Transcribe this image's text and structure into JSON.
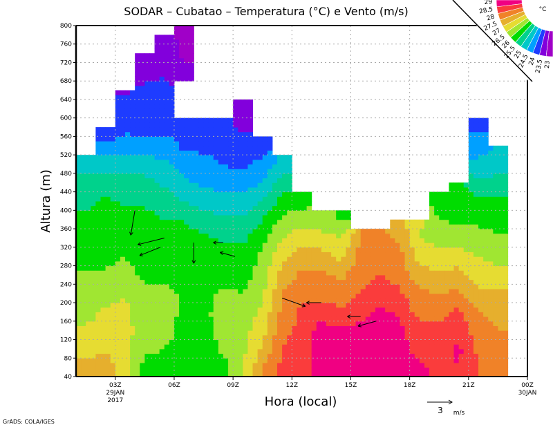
{
  "chart_data": {
    "type": "heatmap",
    "title": "SODAR  –  Cubatao  –  Temperatura (°C) e Vento (m/s)",
    "xlabel": "Hora (local)",
    "ylabel": "Altura (m)",
    "xlim_hours": [
      1,
      24
    ],
    "ylim": [
      40,
      800
    ],
    "y_ticks": [
      40,
      80,
      120,
      160,
      200,
      240,
      280,
      320,
      360,
      400,
      440,
      480,
      520,
      560,
      600,
      640,
      680,
      720,
      760,
      800
    ],
    "x_ticks": [
      {
        "hour": 3,
        "label": "03Z",
        "sub1": "29JAN",
        "sub2": "2017"
      },
      {
        "hour": 6,
        "label": "06Z"
      },
      {
        "hour": 9,
        "label": "09Z"
      },
      {
        "hour": 12,
        "label": "12Z"
      },
      {
        "hour": 15,
        "label": "15Z"
      },
      {
        "hour": 18,
        "label": "18Z"
      },
      {
        "hour": 21,
        "label": "21Z"
      },
      {
        "hour": 24,
        "label": "00Z",
        "sub1": "30JAN"
      }
    ],
    "grid": true,
    "legend": {
      "unit": "°C",
      "placement": "top-right",
      "levels": [
        23,
        23.5,
        24,
        24.5,
        25,
        25.5,
        26,
        26.5,
        27,
        27.5,
        28,
        28.5,
        29
      ],
      "labels": [
        "23",
        "23.5",
        "24",
        "24.5",
        "25",
        "25.5",
        "26",
        "26.5",
        "27",
        "27.5",
        "28",
        "28.5",
        "29"
      ],
      "colors": [
        "#a000c8",
        "#a000c8",
        "#8200dc",
        "#1e3cff",
        "#00a0ff",
        "#00c8c8",
        "#00d28c",
        "#00dc00",
        "#a0e632",
        "#e6dc32",
        "#e6af2d",
        "#f08228",
        "#fa3c3c",
        "#f00082"
      ]
    },
    "row_step_m": 40,
    "columns": [
      {
        "hour_start": 1,
        "top_m": 520,
        "temps": [
          27.8,
          27.2,
          27.1,
          26.8,
          26.7,
          26.6,
          26.2,
          26.2,
          26.2,
          25.8,
          25.7,
          25.2
        ]
      },
      {
        "hour_start": 2,
        "top_m": 580,
        "temps": [
          27.8,
          27.4,
          27.2,
          27.1,
          26.8,
          26.6,
          26.3,
          26.2,
          26.2,
          26.1,
          25.7,
          25.3,
          24.7,
          23.9
        ]
      },
      {
        "hour_start": 3,
        "top_m": 660,
        "temps": [
          27.1,
          27.2,
          27.2,
          27.1,
          27.0,
          26.7,
          26.5,
          26.2,
          26.2,
          25.9,
          25.7,
          25.2,
          24.7,
          24.4,
          24.2,
          23.9
        ]
      },
      {
        "hour_start": 4,
        "top_m": 740,
        "temps": [
          26.3,
          26.6,
          26.7,
          26.7,
          26.6,
          26.4,
          26.2,
          26.2,
          26.2,
          25.9,
          25.7,
          25.2,
          24.7,
          24.3,
          24.2,
          24.1,
          23.8,
          23.8
        ]
      },
      {
        "hour_start": 5,
        "top_m": 780,
        "temps": [
          26.3,
          26.5,
          26.7,
          26.7,
          26.7,
          26.3,
          26.2,
          26.2,
          26.0,
          25.8,
          25.4,
          25.1,
          24.8,
          24.3,
          24.2,
          24.2,
          23.9,
          23.8,
          23.8
        ]
      },
      {
        "hour_start": 6,
        "top_m": 800,
        "temps": [
          26.3,
          26.3,
          26.3,
          26.4,
          26.4,
          26.3,
          26.3,
          26.2,
          26.0,
          25.5,
          25.1,
          24.8,
          24.4,
          24.2,
          null,
          null,
          23.6,
          23.4,
          23.3
        ]
      },
      {
        "hour_start": 7,
        "top_m": 600,
        "temps": [
          26.2,
          26.2,
          26.3,
          26.4,
          26.3,
          26.2,
          26.2,
          26.1,
          25.7,
          25.3,
          24.9,
          24.8,
          24.3,
          24.2
        ]
      },
      {
        "hour_start": 8,
        "top_m": 600,
        "temps": [
          26.3,
          26.6,
          26.7,
          26.7,
          26.6,
          26.3,
          26.2,
          25.9,
          25.6,
          25.2,
          24.8,
          24.5,
          24.2,
          24.2
        ]
      },
      {
        "hour_start": 9,
        "top_m": 640,
        "temps": [
          26.9,
          26.9,
          26.8,
          26.7,
          26.5,
          26.3,
          26.2,
          25.9,
          25.6,
          25.2,
          24.8,
          24.3,
          24.2,
          23.9,
          23.8
        ]
      },
      {
        "hour_start": 10,
        "top_m": 560,
        "temps": [
          28.0,
          27.6,
          27.3,
          27.1,
          26.9,
          26.7,
          26.6,
          26.3,
          26.0,
          25.5,
          25.0,
          24.7,
          24.2
        ]
      },
      {
        "hour_start": 11,
        "top_m": 520,
        "temps": [
          28.6,
          28.5,
          28.3,
          28.1,
          28.0,
          27.7,
          27.4,
          27.0,
          26.6,
          26.2,
          25.7,
          25.2
        ]
      },
      {
        "hour_start": 12,
        "top_m": 440,
        "temps": [
          28.8,
          28.8,
          28.7,
          28.6,
          28.3,
          28.1,
          27.8,
          27.3,
          26.8,
          26.3
        ]
      },
      {
        "hour_start": 13,
        "top_m": 400,
        "temps": [
          29.3,
          29.3,
          29.2,
          28.8,
          28.3,
          28.1,
          27.7,
          27.2,
          26.7
        ]
      },
      {
        "hour_start": 14,
        "top_m": 400,
        "temps": [
          29.3,
          29.3,
          29.1,
          28.6,
          28.2,
          27.9,
          27.4,
          27.0,
          26.4
        ]
      },
      {
        "hour_start": 15,
        "top_m": 360,
        "temps": [
          29.4,
          29.3,
          29.2,
          28.8,
          28.5,
          28.3,
          28.2,
          28.0
        ]
      },
      {
        "hour_start": 16,
        "top_m": 360,
        "temps": [
          29.4,
          29.4,
          29.3,
          29.1,
          28.7,
          28.5,
          28.3,
          28.2
        ]
      },
      {
        "hour_start": 17,
        "top_m": 380,
        "temps": [
          29.2,
          29.2,
          29.1,
          28.9,
          28.6,
          28.3,
          28.2,
          27.9,
          27.6
        ]
      },
      {
        "hour_start": 18,
        "top_m": 380,
        "temps": [
          29.1,
          28.8,
          28.7,
          28.3,
          28.1,
          27.7,
          27.3,
          27.0,
          27.1
        ]
      },
      {
        "hour_start": 19,
        "top_m": 440,
        "temps": [
          28.9,
          28.8,
          28.7,
          28.3,
          28.0,
          27.6,
          27.2,
          26.8,
          26.5,
          26.3
        ]
      },
      {
        "hour_start": 20,
        "top_m": 460,
        "temps": [
          29.0,
          29.1,
          28.9,
          28.6,
          28.1,
          27.7,
          27.2,
          26.8,
          26.4,
          26.2,
          26.1
        ]
      },
      {
        "hour_start": 21,
        "top_m": 600,
        "temps": [
          28.5,
          28.4,
          28.2,
          28.0,
          27.6,
          27.3,
          27.0,
          26.7,
          26.4,
          26.1,
          25.6,
          25.1,
          24.8,
          24.4
        ]
      },
      {
        "hour_start": 22,
        "top_m": 540,
        "temps": [
          28.2,
          28.1,
          28.0,
          27.8,
          27.6,
          27.2,
          26.8,
          26.6,
          26.2,
          26.1,
          25.7,
          25.2,
          25.0
        ]
      }
    ],
    "wind_ms": [
      {
        "hour": 5.5,
        "height": 340,
        "u": -3.2,
        "v": -0.8
      },
      {
        "hour": 5.3,
        "height": 320,
        "u": -2.5,
        "v": -1.0
      },
      {
        "hour": 4.0,
        "height": 400,
        "u": -0.5,
        "v": -3.0
      },
      {
        "hour": 11.5,
        "height": 210,
        "u": 2.8,
        "v": -1.0
      },
      {
        "hour": 13.5,
        "height": 200,
        "u": -1.8,
        "v": 0
      },
      {
        "hour": 15.5,
        "height": 170,
        "u": -1.6,
        "v": 0
      },
      {
        "hour": 16.3,
        "height": 160,
        "u": -2.2,
        "v": -0.6
      },
      {
        "hour": 9.1,
        "height": 300,
        "u": -1.8,
        "v": 0.5
      },
      {
        "hour": 8.5,
        "height": 330,
        "u": -1.2,
        "v": 0
      },
      {
        "hour": 7.0,
        "height": 330,
        "u": 0,
        "v": -2.5
      }
    ],
    "reference_vector": {
      "value": "3",
      "unit": "m/s"
    }
  },
  "footer": "GrADS: COLA/IGES"
}
